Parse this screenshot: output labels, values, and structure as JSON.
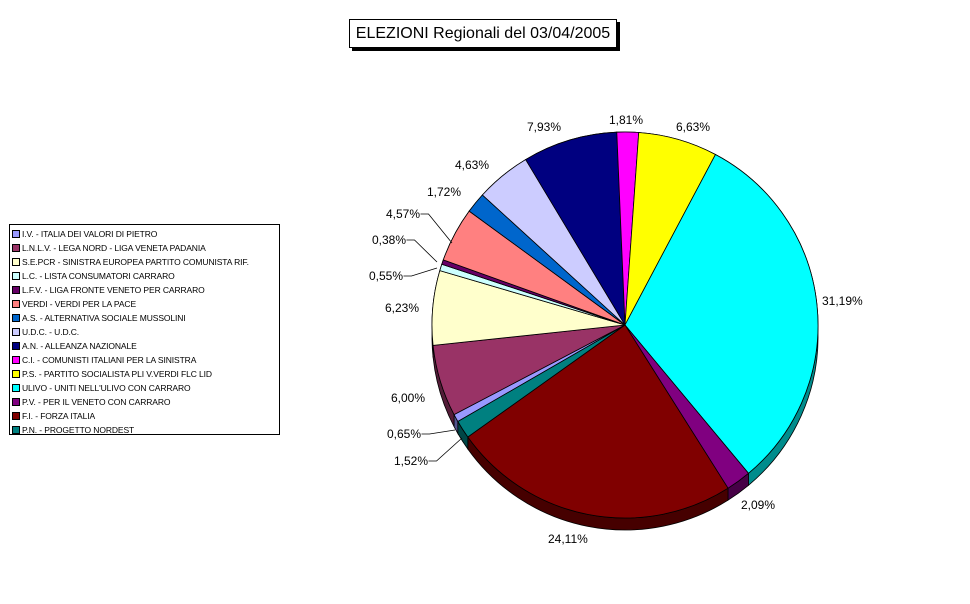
{
  "chart_data": {
    "type": "pie",
    "title": "ELEZIONI Regionali del 03/04/2005",
    "legend_position": "left",
    "start_angle_deg": 240,
    "series": [
      {
        "name": "I.V. - ITALIA DEI VALORI DI PIETRO",
        "value": 0.65,
        "label": "0,65%",
        "color": "#9999ff"
      },
      {
        "name": "L.N.L.V. - LEGA NORD - LIGA VENETA PADANIA",
        "value": 6.0,
        "label": "6,00%",
        "color": "#993366"
      },
      {
        "name": "S.E.PCR - SINISTRA EUROPEA PARTITO COMUNISTA RIF.",
        "value": 6.23,
        "label": "6,23%",
        "color": "#ffffcc"
      },
      {
        "name": "L.C. - LISTA CONSUMATORI CARRARO",
        "value": 0.55,
        "label": "0,55%",
        "color": "#ccffff"
      },
      {
        "name": "L.F.V. - LIGA FRONTE VENETO PER CARRARO",
        "value": 0.38,
        "label": "0,38%",
        "color": "#660066"
      },
      {
        "name": "VERDI - VERDI PER LA PACE",
        "value": 4.57,
        "label": "4,57%",
        "color": "#ff8080"
      },
      {
        "name": "A.S. - ALTERNATIVA SOCIALE MUSSOLINI",
        "value": 1.72,
        "label": "1,72%",
        "color": "#0066cc"
      },
      {
        "name": "U.D.C. - U.D.C.",
        "value": 4.63,
        "label": "4,63%",
        "color": "#ccccff"
      },
      {
        "name": "A.N. - ALLEANZA NAZIONALE",
        "value": 7.93,
        "label": "7,93%",
        "color": "#000080"
      },
      {
        "name": "C.I. - COMUNISTI ITALIANI PER LA SINISTRA",
        "value": 1.81,
        "label": "1,81%",
        "color": "#ff00ff"
      },
      {
        "name": "P.S. - PARTITO SOCIALISTA PLI V.VERDI FLC LID",
        "value": 6.63,
        "label": "6,63%",
        "color": "#ffff00"
      },
      {
        "name": "ULIVO - UNITI NELL'ULIVO CON CARRARO",
        "value": 31.19,
        "label": "31,19%",
        "color": "#00ffff"
      },
      {
        "name": "P.V. - PER IL VENETO CON CARRARO",
        "value": 2.09,
        "label": "2,09%",
        "color": "#800080"
      },
      {
        "name": "F.I. - FORZA ITALIA",
        "value": 24.11,
        "label": "24,11%",
        "color": "#800000"
      },
      {
        "name": "P.N. - PROGETTO NORDEST",
        "value": 1.52,
        "label": "1,52%",
        "color": "#008080"
      }
    ]
  }
}
